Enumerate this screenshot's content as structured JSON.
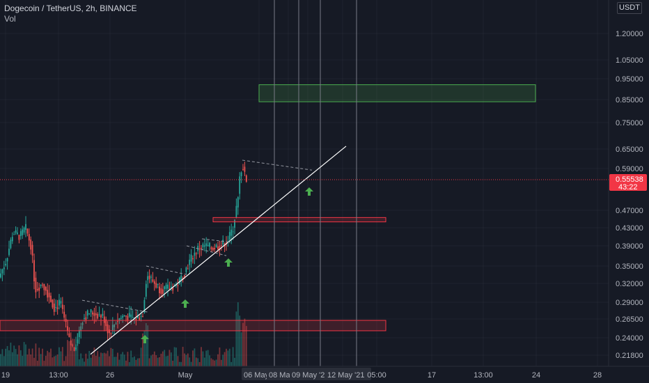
{
  "header": {
    "symbol": "Dogecoin / TetherUS, 2h, BINANCE",
    "volume_label": "Vol",
    "currency_badge": "USDT"
  },
  "chart_data": {
    "type": "candlestick",
    "symbol": "DOGE/USDT",
    "price_axis": {
      "ticks": [
        "1.20000",
        "1.05000",
        "0.95000",
        "0.85000",
        "0.75000",
        "0.65000",
        "0.59000",
        "0.47000",
        "0.43000",
        "0.39000",
        "0.35000",
        "0.32000",
        "0.29000",
        "0.26500",
        "0.24000",
        "0.21800"
      ],
      "scale": "log",
      "last_price": "0.55538",
      "countdown": "43:22"
    },
    "time_axis": {
      "ticks": [
        "19",
        "13:00",
        "26",
        "May",
        "06 May '21",
        "08 May '21",
        "09 May '21",
        "12 May '21",
        "05:00",
        "17",
        "13:00",
        "24",
        "28"
      ]
    },
    "annotations": {
      "zones": [
        {
          "kind": "target",
          "color": "#4caf50",
          "price_low": 0.84,
          "price_high": 0.92
        },
        {
          "kind": "resistance",
          "color": "#f23645",
          "price_low": 0.443,
          "price_high": 0.453
        },
        {
          "kind": "support",
          "color": "#f23645",
          "price_low": 0.249,
          "price_high": 0.263
        }
      ],
      "trend_line": {
        "color": "#ffffff",
        "from_price": 0.217,
        "to_price": 0.66
      },
      "up_arrows": 4,
      "colors": {
        "up": "#26a69a",
        "down": "#ef5350",
        "arrow": "#4caf50",
        "grid": "#2a2e39"
      }
    }
  }
}
